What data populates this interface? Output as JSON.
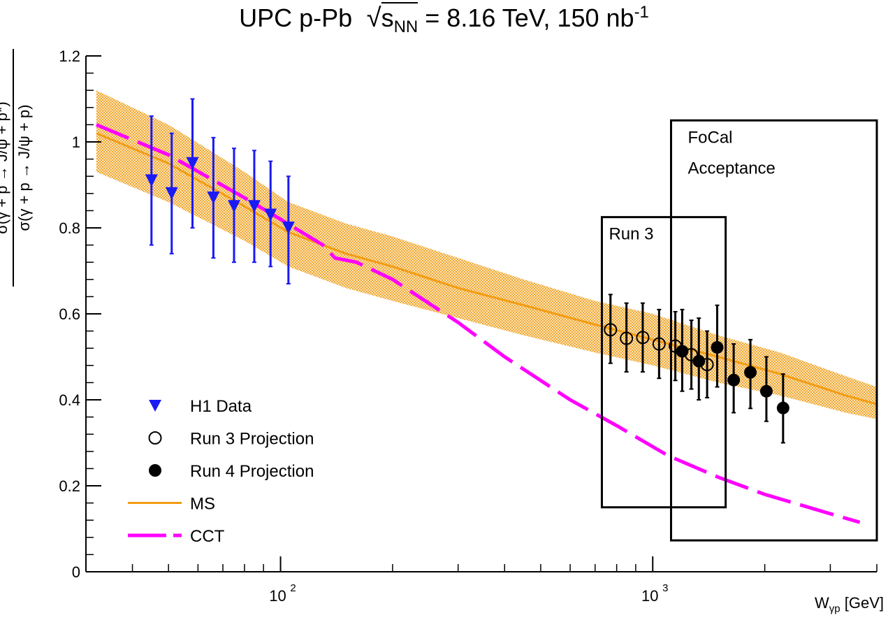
{
  "chart_data": {
    "type": "scatter",
    "title": {
      "main": "UPC p-Pb",
      "sqrt_arg": "s",
      "sqrt_sub": "NN",
      "energy": "= 8.16 TeV, 150 nb",
      "lumi_exp": "-1"
    },
    "ylabel": {
      "numerator": "σ(γ + p → J/ψ + p*)",
      "denominator": "σ(γ + p → J/ψ + p)"
    },
    "xlabel": {
      "main": "W",
      "sub": "γp",
      "unit": "[GeV]"
    },
    "xscale": "log",
    "xlim": [
      30,
      4000
    ],
    "ylim": [
      0,
      1.2
    ],
    "y_ticks": [
      "0",
      "0.2",
      "0.4",
      "0.6",
      "0.8",
      "1",
      "1.2"
    ],
    "x_tick_labels": [
      {
        "base": "10",
        "exp": "2",
        "value": 100
      },
      {
        "base": "10",
        "exp": "3",
        "value": 1000
      }
    ],
    "series": [
      {
        "name": "H1 Data",
        "marker": "triangle-down",
        "color": "#1a1af5",
        "points": [
          {
            "x": 45,
            "y": 0.91,
            "ylo": 0.76,
            "yhi": 1.06
          },
          {
            "x": 51,
            "y": 0.88,
            "ylo": 0.74,
            "yhi": 1.02
          },
          {
            "x": 58,
            "y": 0.95,
            "ylo": 0.8,
            "yhi": 1.1
          },
          {
            "x": 66,
            "y": 0.87,
            "ylo": 0.73,
            "yhi": 1.01
          },
          {
            "x": 75,
            "y": 0.85,
            "ylo": 0.72,
            "yhi": 0.985
          },
          {
            "x": 85,
            "y": 0.85,
            "ylo": 0.72,
            "yhi": 0.98
          },
          {
            "x": 94,
            "y": 0.83,
            "ylo": 0.71,
            "yhi": 0.955
          },
          {
            "x": 105,
            "y": 0.8,
            "ylo": 0.67,
            "yhi": 0.92
          }
        ]
      },
      {
        "name": "Run 3 Projection",
        "marker": "open-circle",
        "color": "#000000",
        "points": [
          {
            "x": 770,
            "y": 0.563,
            "ylo": 0.485,
            "yhi": 0.645
          },
          {
            "x": 850,
            "y": 0.543,
            "ylo": 0.465,
            "yhi": 0.625
          },
          {
            "x": 940,
            "y": 0.545,
            "ylo": 0.465,
            "yhi": 0.625
          },
          {
            "x": 1040,
            "y": 0.53,
            "ylo": 0.45,
            "yhi": 0.61
          },
          {
            "x": 1150,
            "y": 0.525,
            "ylo": 0.445,
            "yhi": 0.605
          },
          {
            "x": 1270,
            "y": 0.505,
            "ylo": 0.425,
            "yhi": 0.585
          },
          {
            "x": 1400,
            "y": 0.482,
            "ylo": 0.405,
            "yhi": 0.56
          }
        ]
      },
      {
        "name": "Run 4 Projection",
        "marker": "filled-circle",
        "color": "#000000",
        "points": [
          {
            "x": 1200,
            "y": 0.513,
            "ylo": 0.42,
            "yhi": 0.61
          },
          {
            "x": 1330,
            "y": 0.49,
            "ylo": 0.4,
            "yhi": 0.59
          },
          {
            "x": 1490,
            "y": 0.522,
            "ylo": 0.43,
            "yhi": 0.62
          },
          {
            "x": 1650,
            "y": 0.446,
            "ylo": 0.37,
            "yhi": 0.53
          },
          {
            "x": 1830,
            "y": 0.464,
            "ylo": 0.38,
            "yhi": 0.54
          },
          {
            "x": 2020,
            "y": 0.42,
            "ylo": 0.35,
            "yhi": 0.5
          },
          {
            "x": 2240,
            "y": 0.381,
            "ylo": 0.3,
            "yhi": 0.46
          }
        ]
      },
      {
        "name": "MS",
        "type": "line-band",
        "color": "#f39c12",
        "band_color": "#f5b955",
        "x": [
          32,
          50,
          80,
          105,
          150,
          200,
          300,
          450,
          700,
          1000,
          1500,
          2200,
          3300,
          4000
        ],
        "y": [
          1.02,
          0.95,
          0.85,
          0.79,
          0.74,
          0.71,
          0.66,
          0.62,
          0.575,
          0.54,
          0.5,
          0.46,
          0.41,
          0.39
        ],
        "band_low": [
          0.93,
          0.86,
          0.77,
          0.71,
          0.66,
          0.63,
          0.59,
          0.55,
          0.51,
          0.48,
          0.44,
          0.41,
          0.37,
          0.355
        ],
        "band_high": [
          1.12,
          1.04,
          0.93,
          0.86,
          0.81,
          0.78,
          0.73,
          0.68,
          0.63,
          0.6,
          0.55,
          0.51,
          0.455,
          0.43
        ]
      },
      {
        "name": "CCT",
        "type": "dashed-line",
        "color": "#ff00ff",
        "x": [
          32,
          50,
          80,
          100,
          130,
          140,
          160,
          200,
          300,
          400,
          600,
          800,
          1100,
          1500,
          2000,
          3000,
          3600
        ],
        "y": [
          1.04,
          0.97,
          0.87,
          0.82,
          0.76,
          0.73,
          0.72,
          0.68,
          0.58,
          0.5,
          0.4,
          0.34,
          0.27,
          0.22,
          0.18,
          0.135,
          0.115
        ]
      }
    ],
    "annotations": [
      {
        "label": "Run 3",
        "x_range": [
          730,
          1570
        ],
        "y_range": [
          0.15,
          0.825
        ]
      },
      {
        "label_lines": [
          "FoCal",
          "Acceptance"
        ],
        "x_range": [
          1120,
          4000
        ],
        "y_range": [
          0.073,
          1.05
        ]
      }
    ],
    "legend": {
      "position": "bottom-left",
      "entries": [
        "H1 Data",
        "Run 3 Projection",
        "Run 4 Projection",
        "MS",
        "CCT"
      ]
    }
  }
}
